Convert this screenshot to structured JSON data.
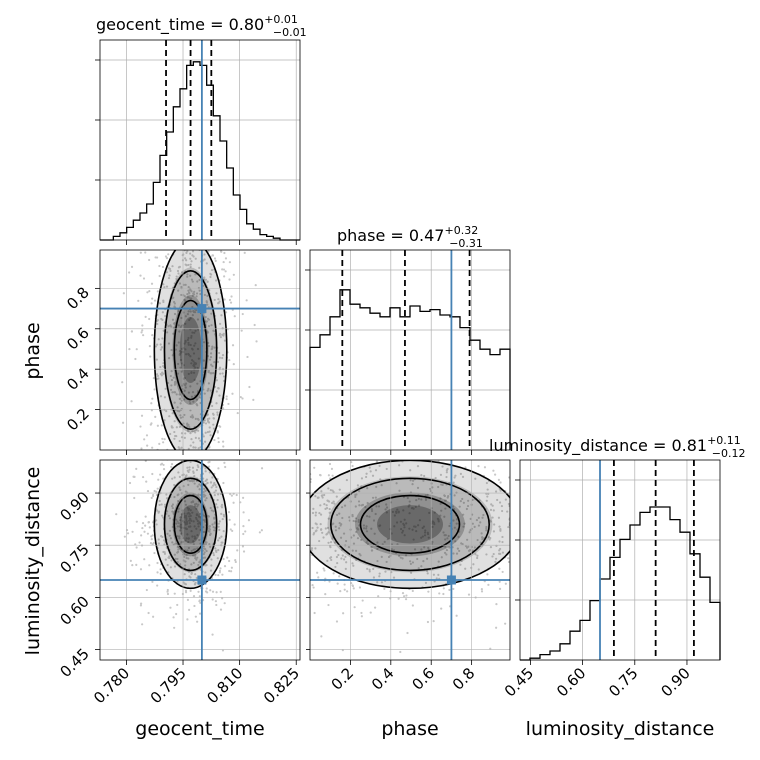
{
  "chart_data": {
    "type": "corner",
    "parameters": [
      "geocent_time",
      "phase",
      "luminosity_distance"
    ],
    "truth": {
      "geocent_time": 0.8,
      "phase": 0.7,
      "luminosity_distance": 0.65
    },
    "colors": {
      "truth": "#4682b4",
      "hist": "#000000",
      "grid": "#b0b0b0",
      "samples": "#c8c8c8",
      "density": "#000000"
    },
    "grid": true,
    "titles": {
      "geocent_time": {
        "name": "geocent_time",
        "median": "0.80",
        "plus": "+0.01",
        "minus": "−0.01"
      },
      "phase": {
        "name": "phase",
        "median": "0.47",
        "plus": "+0.32",
        "minus": "−0.31"
      },
      "luminosity_distance": {
        "name": "luminosity_distance",
        "median": "0.81",
        "plus": "+0.11",
        "minus": "−0.12"
      }
    },
    "axes": {
      "geocent_time": {
        "label": "geocent_time",
        "range": [
          0.773,
          0.826
        ],
        "ticks": [
          "0.780",
          "0.795",
          "0.810",
          "0.825"
        ]
      },
      "phase": {
        "label": "phase",
        "range": [
          0.0,
          0.99
        ],
        "ticks": [
          "0.2",
          "0.4",
          "0.6",
          "0.8"
        ]
      },
      "luminosity_distance": {
        "label": "luminosity_distance",
        "range": [
          0.42,
          0.995
        ],
        "ticks": [
          "0.45",
          "0.60",
          "0.75",
          "0.90"
        ]
      }
    },
    "quantiles": {
      "geocent_time": [
        0.7905,
        0.797,
        0.8025
      ],
      "phase": [
        0.16,
        0.47,
        0.79
      ],
      "luminosity_distance": [
        0.69,
        0.81,
        0.92
      ]
    },
    "histograms": {
      "geocent_time": {
        "range": [
          0.773,
          0.826
        ],
        "bins": 30,
        "counts": [
          0.0,
          0.0,
          0.02,
          0.04,
          0.07,
          0.11,
          0.15,
          0.2,
          0.32,
          0.47,
          0.6,
          0.74,
          0.84,
          0.97,
          0.99,
          0.97,
          0.86,
          0.69,
          0.55,
          0.4,
          0.25,
          0.17,
          0.09,
          0.06,
          0.03,
          0.02,
          0.01,
          0.0,
          0.0,
          0.0
        ]
      },
      "phase": {
        "range": [
          0.0,
          0.99
        ],
        "bins": 20,
        "counts": [
          0.57,
          0.64,
          0.74,
          0.89,
          0.81,
          0.79,
          0.76,
          0.74,
          0.79,
          0.74,
          0.8,
          0.77,
          0.78,
          0.75,
          0.74,
          0.68,
          0.61,
          0.56,
          0.53,
          0.56
        ]
      },
      "luminosity_distance": {
        "range": [
          0.42,
          0.995
        ],
        "bins": 20,
        "counts": [
          0.0,
          0.01,
          0.03,
          0.05,
          0.09,
          0.16,
          0.22,
          0.33,
          0.45,
          0.57,
          0.67,
          0.75,
          0.82,
          0.85,
          0.85,
          0.78,
          0.71,
          0.59,
          0.46,
          0.32
        ]
      }
    }
  }
}
